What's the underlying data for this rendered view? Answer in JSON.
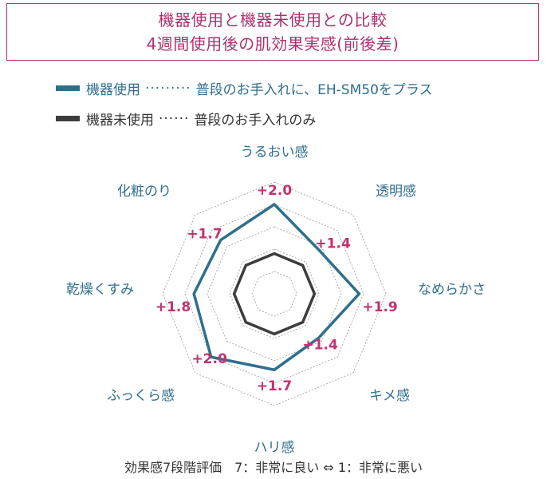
{
  "title": {
    "line1": "機器使用と機器未使用との比較",
    "line2": "4週間使用後の肌効果実感(前後差)"
  },
  "legend": [
    {
      "series": "機器使用",
      "dots": "·········",
      "desc": "普段のお手入れに、EH-SM50をプラス",
      "color": "#2f6e8d"
    },
    {
      "series": "機器未使用",
      "dots": "······",
      "desc": "普段のお手入れのみ",
      "color": "#3d3d3d"
    }
  ],
  "footer": "効果感7段階評価　7：非常に良い ⇔ 1：非常に悪い",
  "chart_data": {
    "type": "radar",
    "axes": [
      "うるおい感",
      "透明感",
      "なめらかさ",
      "キメ感",
      "ハリ感",
      "ふっくら感",
      "乾燥くすみ",
      "化粧のり"
    ],
    "series": [
      {
        "name": "機器使用",
        "values": [
          2.0,
          1.4,
          1.9,
          1.4,
          1.7,
          2.0,
          1.8,
          1.7
        ],
        "color": "#2f6e8d"
      },
      {
        "name": "機器未使用",
        "values": [
          0.9,
          0.9,
          0.9,
          0.9,
          0.9,
          0.9,
          0.9,
          0.9
        ],
        "color": "#3d3d3d"
      }
    ],
    "value_labels": [
      "+2.0",
      "+1.4",
      "+1.9",
      "+1.4",
      "+1.7",
      "+2.0",
      "+1.8",
      "+1.7"
    ],
    "value_label_color": "#c2326f",
    "axis_label_color": "#2f6e8d",
    "rmax": 2.5,
    "gridline_levels": [
      0.5,
      1.0,
      1.5,
      2.0,
      2.5
    ],
    "grid": true
  }
}
